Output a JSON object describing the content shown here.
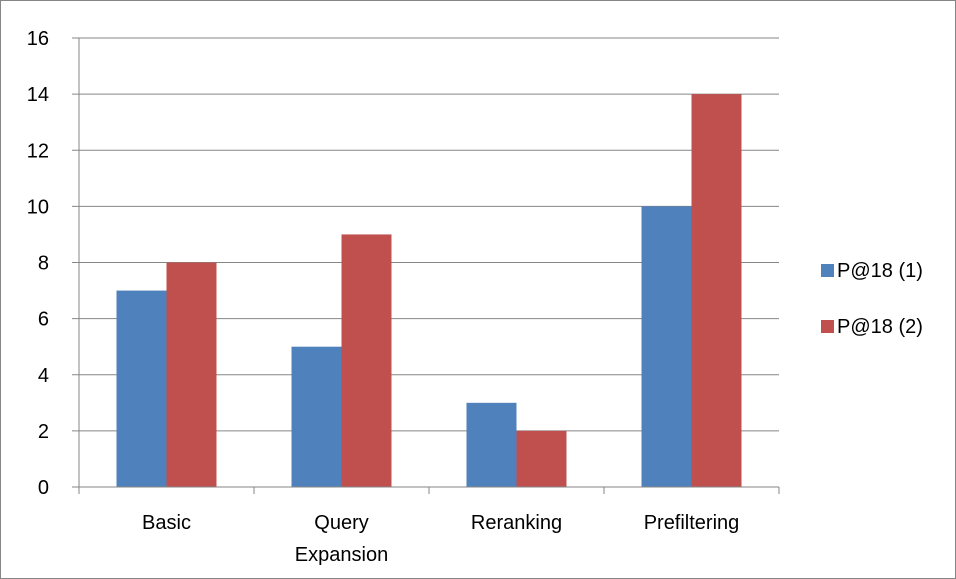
{
  "chart_data": {
    "type": "bar",
    "title": "",
    "xlabel": "",
    "ylabel": "",
    "categories": [
      [
        "Basic"
      ],
      [
        "Query",
        "Expansion"
      ],
      [
        "Reranking"
      ],
      [
        "Prefiltering"
      ]
    ],
    "series": [
      {
        "name": "P@18 (1)",
        "values": [
          7,
          5,
          3,
          10
        ],
        "color": "#4F81BD"
      },
      {
        "name": "P@18 (2)",
        "values": [
          8,
          9,
          2,
          14
        ],
        "color": "#C0504D"
      }
    ],
    "ylim": [
      0,
      16
    ],
    "yticks": [
      0,
      2,
      4,
      6,
      8,
      10,
      12,
      14,
      16
    ],
    "grid": true,
    "gridColor": "#868686",
    "axisColor": "#868686",
    "legend": "right"
  }
}
